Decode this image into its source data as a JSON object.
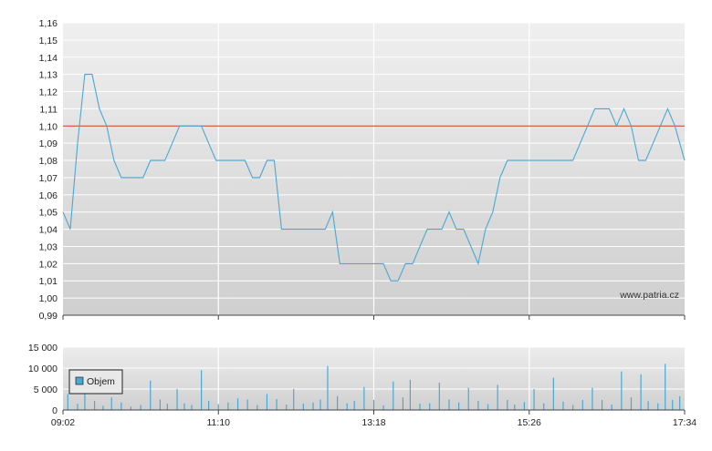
{
  "chart_data": [
    {
      "type": "line",
      "title": "",
      "xlabel": "",
      "ylabel": "",
      "ylim": [
        0.99,
        1.16
      ],
      "y_ticks": [
        "1,16",
        "1,15",
        "1,14",
        "1,13",
        "1,12",
        "1,11",
        "1,10",
        "1,09",
        "1,08",
        "1,07",
        "1,06",
        "1,05",
        "1,04",
        "1,03",
        "1,02",
        "1,01",
        "1,00",
        "0,99"
      ],
      "x_ticks": [
        "09:02",
        "11:10",
        "13:18",
        "15:26",
        "17:34"
      ],
      "reference_line": {
        "value": 1.1,
        "color": "#cc3322"
      },
      "watermark": "www.patria.cz",
      "series": [
        {
          "color": "#4aa8d4",
          "x": [
            "09:02",
            "09:08",
            "09:14",
            "09:20",
            "09:26",
            "09:32",
            "09:38",
            "09:44",
            "09:50",
            "09:56",
            "10:02",
            "10:08",
            "10:14",
            "10:20",
            "10:26",
            "10:32",
            "10:38",
            "10:44",
            "10:50",
            "10:56",
            "11:02",
            "11:08",
            "11:14",
            "11:20",
            "11:26",
            "11:32",
            "11:38",
            "11:44",
            "11:50",
            "11:56",
            "12:02",
            "12:08",
            "12:14",
            "12:20",
            "12:26",
            "12:32",
            "12:38",
            "12:44",
            "12:50",
            "12:56",
            "13:02",
            "13:08",
            "13:14",
            "13:20",
            "13:26",
            "13:32",
            "13:38",
            "13:44",
            "13:50",
            "13:56",
            "14:02",
            "14:08",
            "14:14",
            "14:20",
            "14:26",
            "14:32",
            "14:38",
            "14:44",
            "14:50",
            "14:56",
            "15:02",
            "15:08",
            "15:14",
            "15:20",
            "15:26",
            "15:32",
            "15:38",
            "15:44",
            "15:50",
            "15:56",
            "16:02",
            "16:08",
            "16:14",
            "16:20",
            "16:26",
            "16:32",
            "16:38",
            "16:44",
            "16:50",
            "16:56",
            "17:02",
            "17:08",
            "17:14",
            "17:20",
            "17:26",
            "17:34"
          ],
          "values": [
            1.05,
            1.04,
            1.09,
            1.13,
            1.13,
            1.11,
            1.1,
            1.08,
            1.07,
            1.07,
            1.07,
            1.07,
            1.08,
            1.08,
            1.08,
            1.09,
            1.1,
            1.1,
            1.1,
            1.1,
            1.09,
            1.08,
            1.08,
            1.08,
            1.08,
            1.08,
            1.07,
            1.07,
            1.08,
            1.08,
            1.04,
            1.04,
            1.04,
            1.04,
            1.04,
            1.04,
            1.04,
            1.05,
            1.02,
            1.02,
            1.02,
            1.02,
            1.02,
            1.02,
            1.02,
            1.01,
            1.01,
            1.02,
            1.02,
            1.03,
            1.04,
            1.04,
            1.04,
            1.05,
            1.04,
            1.04,
            1.03,
            1.02,
            1.04,
            1.05,
            1.07,
            1.08,
            1.08,
            1.08,
            1.08,
            1.08,
            1.08,
            1.08,
            1.08,
            1.08,
            1.08,
            1.09,
            1.1,
            1.11,
            1.11,
            1.11,
            1.1,
            1.11,
            1.1,
            1.08,
            1.08,
            1.09,
            1.1,
            1.11,
            1.1,
            1.08
          ]
        }
      ]
    },
    {
      "type": "bar",
      "title": "",
      "xlabel": "",
      "ylabel": "",
      "ylim": [
        0,
        15000
      ],
      "y_ticks": [
        "15 000",
        "10 000",
        "5 000",
        "0"
      ],
      "x_ticks": [
        "09:02",
        "11:10",
        "13:18",
        "15:26",
        "17:34"
      ],
      "legend": {
        "label": "Objem",
        "position": "top-left"
      },
      "series": [
        {
          "name": "Objem",
          "color": "#4aa8d4",
          "x": [
            "09:06",
            "09:14",
            "09:20",
            "09:28",
            "09:35",
            "09:42",
            "09:50",
            "09:58",
            "10:06",
            "10:14",
            "10:22",
            "10:28",
            "10:36",
            "10:42",
            "10:48",
            "10:56",
            "11:02",
            "11:10",
            "11:18",
            "11:26",
            "11:34",
            "11:42",
            "11:50",
            "11:58",
            "12:06",
            "12:12",
            "12:20",
            "12:28",
            "12:34",
            "12:40",
            "12:48",
            "12:56",
            "13:02",
            "13:10",
            "13:18",
            "13:26",
            "13:34",
            "13:42",
            "13:48",
            "13:56",
            "14:04",
            "14:12",
            "14:20",
            "14:28",
            "14:36",
            "14:44",
            "14:52",
            "15:00",
            "15:08",
            "15:14",
            "15:22",
            "15:30",
            "15:38",
            "15:46",
            "15:54",
            "16:02",
            "16:10",
            "16:18",
            "16:26",
            "16:34",
            "16:42",
            "16:50",
            "16:58",
            "17:04",
            "17:12",
            "17:18",
            "17:24",
            "17:30"
          ],
          "values": [
            3800,
            1500,
            4500,
            2200,
            1000,
            3000,
            1800,
            800,
            1200,
            7000,
            2500,
            1500,
            5000,
            1600,
            1200,
            9500,
            2200,
            1400,
            1800,
            2800,
            2500,
            1200,
            3800,
            2600,
            1300,
            5000,
            1500,
            1800,
            2500,
            10500,
            3300,
            1600,
            2200,
            5500,
            2400,
            1100,
            6800,
            3000,
            7200,
            1500,
            1600,
            6500,
            2500,
            1800,
            5300,
            2200,
            1400,
            6000,
            2400,
            1300,
            1900,
            5000,
            1600,
            7700,
            2000,
            1200,
            2400,
            5300,
            2400,
            1300,
            9200,
            3000,
            8500,
            2100,
            1600,
            11000,
            2400,
            3300
          ]
        }
      ]
    }
  ]
}
